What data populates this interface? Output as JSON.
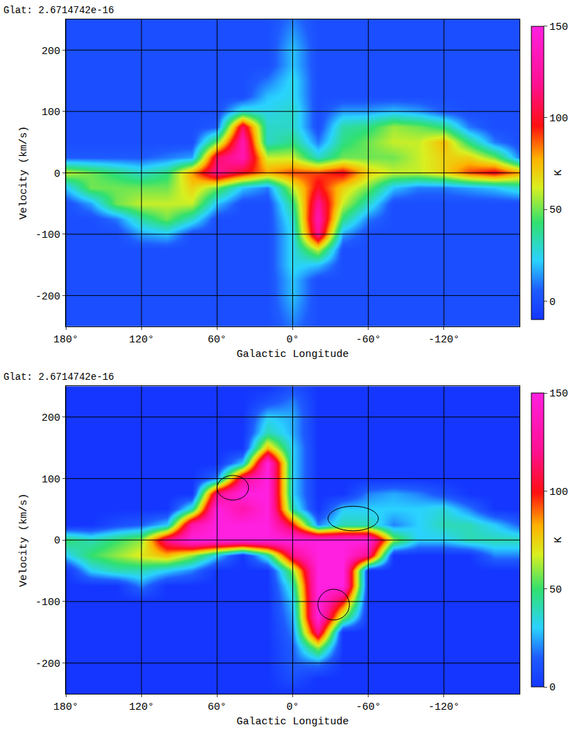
{
  "chart_data": [
    {
      "type": "heatmap",
      "title": "Glat: 2.6714742e-16",
      "x_label": "Galactic Longitude",
      "y_label": "Velocity (km/s)",
      "x": [
        180,
        160,
        140,
        120,
        100,
        80,
        60,
        40,
        20,
        0,
        -20,
        -40,
        -60,
        -80,
        -100,
        -120,
        -140,
        -160,
        -180
      ],
      "y": [
        -250,
        -225,
        -200,
        -175,
        -150,
        -125,
        -100,
        -75,
        -50,
        -25,
        0,
        25,
        50,
        75,
        100,
        125,
        150,
        175,
        200,
        225,
        250
      ],
      "z": [
        [
          0,
          0,
          0,
          0,
          0,
          0,
          0,
          0,
          0,
          10,
          0,
          0,
          0,
          0,
          0,
          0,
          0,
          0,
          0
        ],
        [
          0,
          0,
          0,
          0,
          0,
          0,
          0,
          0,
          0,
          15,
          0,
          0,
          0,
          0,
          0,
          0,
          0,
          0,
          0
        ],
        [
          0,
          0,
          0,
          0,
          0,
          0,
          0,
          0,
          0,
          20,
          0,
          0,
          0,
          0,
          0,
          0,
          0,
          0,
          0
        ],
        [
          0,
          0,
          0,
          0,
          0,
          0,
          0,
          0,
          0,
          20,
          0,
          0,
          0,
          0,
          0,
          0,
          0,
          0,
          0
        ],
        [
          0,
          0,
          0,
          0,
          0,
          0,
          0,
          0,
          0,
          25,
          20,
          0,
          0,
          0,
          0,
          0,
          0,
          0,
          0
        ],
        [
          0,
          0,
          0,
          0,
          0,
          0,
          0,
          0,
          0,
          25,
          60,
          0,
          0,
          0,
          0,
          0,
          0,
          0,
          0
        ],
        [
          0,
          0,
          0,
          15,
          20,
          0,
          0,
          0,
          0,
          25,
          120,
          15,
          0,
          0,
          0,
          0,
          0,
          0,
          0
        ],
        [
          0,
          0,
          10,
          35,
          50,
          30,
          0,
          0,
          0,
          30,
          130,
          40,
          10,
          0,
          0,
          0,
          0,
          0,
          0
        ],
        [
          0,
          15,
          50,
          60,
          60,
          60,
          20,
          0,
          0,
          40,
          120,
          60,
          30,
          0,
          0,
          0,
          0,
          0,
          0
        ],
        [
          20,
          50,
          50,
          50,
          50,
          70,
          50,
          20,
          10,
          60,
          100,
          70,
          50,
          20,
          10,
          10,
          15,
          20,
          30
        ],
        [
          60,
          50,
          40,
          30,
          40,
          80,
          120,
          100,
          80,
          90,
          90,
          100,
          70,
          60,
          60,
          70,
          90,
          100,
          80
        ],
        [
          5,
          5,
          5,
          5,
          10,
          15,
          110,
          130,
          60,
          60,
          30,
          50,
          50,
          50,
          60,
          70,
          70,
          50,
          10
        ],
        [
          0,
          0,
          0,
          0,
          0,
          0,
          50,
          130,
          30,
          40,
          10,
          40,
          50,
          60,
          60,
          75,
          40,
          10,
          0
        ],
        [
          0,
          0,
          0,
          0,
          0,
          0,
          5,
          110,
          30,
          30,
          0,
          35,
          40,
          55,
          50,
          40,
          10,
          0,
          0
        ],
        [
          0,
          0,
          0,
          0,
          0,
          0,
          0,
          30,
          25,
          30,
          0,
          15,
          15,
          20,
          15,
          5,
          0,
          0,
          0
        ],
        [
          0,
          0,
          0,
          0,
          0,
          0,
          0,
          0,
          20,
          25,
          0,
          0,
          0,
          0,
          0,
          0,
          0,
          0,
          0
        ],
        [
          0,
          0,
          0,
          0,
          0,
          0,
          0,
          0,
          10,
          25,
          0,
          0,
          0,
          0,
          0,
          0,
          0,
          0,
          0
        ],
        [
          0,
          0,
          0,
          0,
          0,
          0,
          0,
          0,
          0,
          20,
          0,
          0,
          0,
          0,
          0,
          0,
          0,
          0,
          0
        ],
        [
          0,
          0,
          0,
          0,
          0,
          0,
          0,
          0,
          0,
          20,
          0,
          0,
          0,
          0,
          0,
          0,
          0,
          0,
          0
        ],
        [
          0,
          0,
          0,
          0,
          0,
          0,
          0,
          0,
          0,
          15,
          0,
          0,
          0,
          0,
          0,
          0,
          0,
          0,
          0
        ],
        [
          0,
          0,
          0,
          0,
          0,
          0,
          0,
          0,
          0,
          10,
          0,
          0,
          0,
          0,
          0,
          0,
          0,
          0,
          0
        ]
      ],
      "xlim": [
        180,
        -180
      ],
      "xticks": [
        {
          "value": 180,
          "label": "180°"
        },
        {
          "value": 120,
          "label": "120°"
        },
        {
          "value": 60,
          "label": "60°"
        },
        {
          "value": 0,
          "label": "0°"
        },
        {
          "value": -60,
          "label": "-60°"
        },
        {
          "value": -120,
          "label": "-120°"
        }
      ],
      "ylim": [
        -250,
        250
      ],
      "yticks": [
        -200,
        -100,
        0,
        100,
        200
      ],
      "colorbar": {
        "label": "K",
        "range": [
          -10,
          150
        ],
        "ticks": [
          0,
          50,
          100,
          150
        ]
      },
      "grid": true
    },
    {
      "type": "heatmap",
      "title": "Glat: 2.6714742e-16",
      "x_label": "Galactic Longitude",
      "y_label": "Velocity (km/s)",
      "x": [
        180,
        160,
        140,
        120,
        100,
        80,
        60,
        40,
        20,
        0,
        -20,
        -40,
        -60,
        -80,
        -100,
        -120,
        -140,
        -160,
        -180
      ],
      "y": [
        -250,
        -225,
        -200,
        -175,
        -150,
        -125,
        -100,
        -75,
        -50,
        -25,
        0,
        25,
        50,
        75,
        100,
        125,
        150,
        175,
        200,
        225,
        250
      ],
      "z": [
        [
          0,
          0,
          0,
          0,
          0,
          0,
          0,
          0,
          0,
          0,
          0,
          0,
          0,
          0,
          0,
          0,
          0,
          0,
          0
        ],
        [
          0,
          0,
          0,
          0,
          0,
          0,
          0,
          0,
          0,
          10,
          0,
          0,
          0,
          0,
          0,
          0,
          0,
          0,
          0
        ],
        [
          0,
          0,
          0,
          0,
          0,
          0,
          0,
          0,
          0,
          15,
          20,
          0,
          0,
          0,
          0,
          0,
          0,
          0,
          0
        ],
        [
          0,
          0,
          0,
          0,
          0,
          0,
          0,
          0,
          0,
          15,
          60,
          0,
          0,
          0,
          0,
          0,
          0,
          0,
          0
        ],
        [
          0,
          0,
          0,
          0,
          0,
          0,
          0,
          0,
          0,
          20,
          120,
          0,
          0,
          0,
          0,
          0,
          0,
          0,
          0
        ],
        [
          0,
          0,
          0,
          0,
          0,
          0,
          0,
          0,
          0,
          25,
          150,
          60,
          0,
          0,
          0,
          0,
          0,
          0,
          0
        ],
        [
          0,
          0,
          0,
          0,
          0,
          0,
          0,
          0,
          0,
          30,
          150,
          100,
          0,
          0,
          0,
          0,
          0,
          0,
          0
        ],
        [
          0,
          0,
          0,
          20,
          0,
          0,
          0,
          0,
          0,
          40,
          150,
          150,
          0,
          0,
          0,
          0,
          0,
          0,
          0
        ],
        [
          0,
          30,
          40,
          40,
          30,
          20,
          0,
          0,
          0,
          60,
          150,
          150,
          0,
          0,
          0,
          0,
          0,
          0,
          0
        ],
        [
          30,
          50,
          60,
          70,
          80,
          60,
          30,
          0,
          40,
          120,
          150,
          150,
          120,
          0,
          0,
          0,
          0,
          20,
          20
        ],
        [
          50,
          40,
          50,
          60,
          120,
          150,
          150,
          150,
          150,
          150,
          150,
          150,
          150,
          60,
          30,
          30,
          40,
          40,
          40
        ],
        [
          0,
          0,
          10,
          15,
          30,
          130,
          150,
          150,
          150,
          100,
          20,
          40,
          40,
          20,
          30,
          40,
          40,
          30,
          15
        ],
        [
          0,
          0,
          0,
          0,
          0,
          40,
          150,
          130,
          150,
          40,
          0,
          30,
          30,
          30,
          30,
          35,
          20,
          0,
          0
        ],
        [
          0,
          0,
          0,
          0,
          0,
          0,
          120,
          150,
          150,
          30,
          0,
          0,
          20,
          25,
          20,
          10,
          0,
          0,
          0
        ],
        [
          0,
          0,
          0,
          0,
          0,
          0,
          20,
          120,
          150,
          30,
          0,
          0,
          0,
          0,
          0,
          0,
          0,
          0,
          0
        ],
        [
          0,
          0,
          0,
          0,
          0,
          0,
          0,
          30,
          150,
          30,
          0,
          0,
          0,
          0,
          0,
          0,
          0,
          0,
          0
        ],
        [
          0,
          0,
          0,
          0,
          0,
          0,
          0,
          0,
          80,
          30,
          0,
          0,
          0,
          0,
          0,
          0,
          0,
          0,
          0
        ],
        [
          0,
          0,
          0,
          0,
          0,
          0,
          0,
          0,
          40,
          25,
          0,
          0,
          0,
          0,
          0,
          0,
          0,
          0,
          0
        ],
        [
          0,
          0,
          0,
          0,
          0,
          0,
          0,
          0,
          30,
          25,
          0,
          0,
          0,
          0,
          0,
          0,
          0,
          0,
          0
        ],
        [
          0,
          0,
          0,
          0,
          0,
          0,
          0,
          0,
          10,
          20,
          0,
          0,
          0,
          0,
          0,
          0,
          0,
          0,
          0
        ],
        [
          0,
          0,
          0,
          0,
          0,
          0,
          0,
          0,
          0,
          10,
          0,
          0,
          0,
          0,
          0,
          0,
          0,
          0,
          0
        ]
      ],
      "xlim": [
        180,
        -180
      ],
      "xticks": [
        {
          "value": 180,
          "label": "180°"
        },
        {
          "value": 120,
          "label": "120°"
        },
        {
          "value": 60,
          "label": "60°"
        },
        {
          "value": 0,
          "label": "0°"
        },
        {
          "value": -60,
          "label": "-60°"
        },
        {
          "value": -120,
          "label": "-120°"
        }
      ],
      "ylim": [
        -250,
        250
      ],
      "yticks": [
        -200,
        -100,
        0,
        100,
        200
      ],
      "colorbar": {
        "label": "K",
        "range": [
          0,
          150
        ],
        "ticks": [
          0,
          50,
          100,
          150
        ]
      },
      "grid": true,
      "ellipses": [
        {
          "x0": 60,
          "x1": 35,
          "y0": 65,
          "y1": 105
        },
        {
          "x0": -28,
          "x1": -68,
          "y0": 15,
          "y1": 55
        },
        {
          "x0": -20,
          "x1": -45,
          "y0": -80,
          "y1": -130
        }
      ]
    }
  ]
}
